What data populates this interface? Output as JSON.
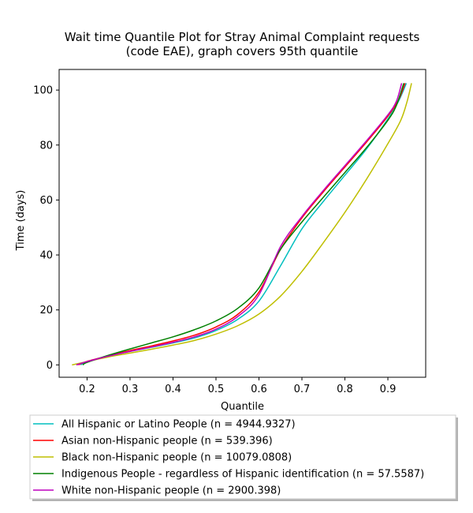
{
  "chart_data": {
    "type": "line",
    "title": "Wait time Quantile Plot for Stray Animal Complaint  requests",
    "subtitle": "(code EAE), graph covers 95th quantile",
    "xlabel": "Quantile",
    "ylabel": "Time (days)",
    "xlim": [
      0.135,
      0.988
    ],
    "ylim": [
      -4.5,
      107.5
    ],
    "xticks": [
      0.2,
      0.3,
      0.4,
      0.5,
      0.6,
      0.7,
      0.8,
      0.9
    ],
    "yticks": [
      0,
      20,
      40,
      60,
      80,
      100
    ],
    "grid": false,
    "legend_position": "below-plot",
    "series": [
      {
        "name": "All Hispanic or Latino People (n = 4944.9327)",
        "color": "#00bfbf",
        "points": [
          [
            0.185,
            0
          ],
          [
            0.2,
            1.2
          ],
          [
            0.25,
            3.2
          ],
          [
            0.3,
            4.9
          ],
          [
            0.35,
            6.4
          ],
          [
            0.4,
            8
          ],
          [
            0.45,
            9.8
          ],
          [
            0.5,
            12.5
          ],
          [
            0.55,
            16.5
          ],
          [
            0.6,
            23.2
          ],
          [
            0.65,
            36
          ],
          [
            0.7,
            49.5
          ],
          [
            0.75,
            59.5
          ],
          [
            0.8,
            69
          ],
          [
            0.85,
            78.5
          ],
          [
            0.9,
            89.5
          ],
          [
            0.925,
            96
          ],
          [
            0.943,
            102.5
          ]
        ]
      },
      {
        "name": "Asian non-Hispanic people (n = 539.396)",
        "color": "#ff0000",
        "points": [
          [
            0.18,
            0
          ],
          [
            0.2,
            1.3
          ],
          [
            0.25,
            3.3
          ],
          [
            0.3,
            5.2
          ],
          [
            0.35,
            6.9
          ],
          [
            0.4,
            8.7
          ],
          [
            0.45,
            10.8
          ],
          [
            0.5,
            13.8
          ],
          [
            0.55,
            18.3
          ],
          [
            0.6,
            26.5
          ],
          [
            0.65,
            42
          ],
          [
            0.7,
            53.5
          ],
          [
            0.75,
            63
          ],
          [
            0.8,
            72
          ],
          [
            0.85,
            81
          ],
          [
            0.9,
            90.5
          ],
          [
            0.925,
            96.5
          ],
          [
            0.94,
            102.5
          ]
        ]
      },
      {
        "name": "Black non-Hispanic people (n = 10079.0808)",
        "color": "#bfbf00",
        "points": [
          [
            0.165,
            0
          ],
          [
            0.2,
            1.2
          ],
          [
            0.25,
            2.9
          ],
          [
            0.3,
            4.3
          ],
          [
            0.35,
            5.7
          ],
          [
            0.4,
            7.2
          ],
          [
            0.45,
            8.9
          ],
          [
            0.5,
            11.2
          ],
          [
            0.55,
            14.2
          ],
          [
            0.6,
            18.5
          ],
          [
            0.65,
            25
          ],
          [
            0.7,
            34
          ],
          [
            0.75,
            44.5
          ],
          [
            0.8,
            55.5
          ],
          [
            0.85,
            67.5
          ],
          [
            0.9,
            80.5
          ],
          [
            0.93,
            89
          ],
          [
            0.945,
            96
          ],
          [
            0.955,
            102.5
          ]
        ]
      },
      {
        "name": "Indigenous People - regardless of Hispanic identification (n = 57.5587)",
        "color": "#008000",
        "points": [
          [
            0.19,
            0
          ],
          [
            0.2,
            0.9
          ],
          [
            0.25,
            3.5
          ],
          [
            0.3,
            5.8
          ],
          [
            0.35,
            8
          ],
          [
            0.4,
            10.2
          ],
          [
            0.45,
            12.8
          ],
          [
            0.5,
            16
          ],
          [
            0.55,
            20.5
          ],
          [
            0.6,
            28
          ],
          [
            0.65,
            42
          ],
          [
            0.7,
            52
          ],
          [
            0.75,
            61
          ],
          [
            0.8,
            70
          ],
          [
            0.85,
            79
          ],
          [
            0.9,
            89
          ],
          [
            0.92,
            94.5
          ],
          [
            0.937,
            102.5
          ]
        ]
      },
      {
        "name": "White non-Hispanic people (n = 2900.398)",
        "color": "#bf00bf",
        "points": [
          [
            0.175,
            0
          ],
          [
            0.2,
            1.2
          ],
          [
            0.25,
            3.2
          ],
          [
            0.3,
            4.9
          ],
          [
            0.35,
            6.5
          ],
          [
            0.4,
            8.2
          ],
          [
            0.45,
            10.2
          ],
          [
            0.5,
            13
          ],
          [
            0.55,
            17.5
          ],
          [
            0.6,
            25.5
          ],
          [
            0.65,
            43
          ],
          [
            0.7,
            54
          ],
          [
            0.75,
            63.5
          ],
          [
            0.8,
            72.5
          ],
          [
            0.85,
            81.5
          ],
          [
            0.9,
            91
          ],
          [
            0.92,
            96
          ],
          [
            0.932,
            102.5
          ]
        ]
      }
    ]
  }
}
